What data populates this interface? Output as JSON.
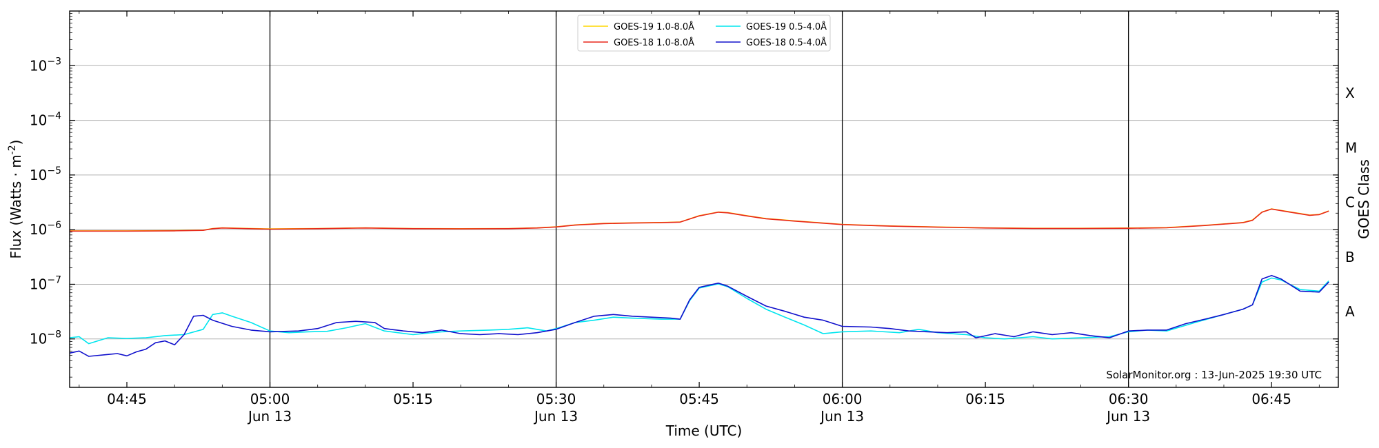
{
  "chart_data": {
    "type": "line",
    "title": "",
    "xlabel": "Time (UTC)",
    "ylabel": "Flux (Watts · m",
    "ylabel_sup": "-2",
    "ylabel_close": ")",
    "right_ylabel": "GOES Class",
    "x_range_utc": [
      "04:39",
      "06:52"
    ],
    "date": "2025-06-13",
    "ylim": [
      1.3e-09,
      0.01
    ],
    "yscale": "log",
    "grid": "horizontal",
    "legend_placement": "top-center",
    "x_ticks": [
      {
        "t": "04:45",
        "label": "04:45",
        "sub": ""
      },
      {
        "t": "05:00",
        "label": "05:00",
        "sub": "Jun 13",
        "vline": true
      },
      {
        "t": "05:15",
        "label": "05:15",
        "sub": ""
      },
      {
        "t": "05:30",
        "label": "05:30",
        "sub": "Jun 13",
        "vline": true
      },
      {
        "t": "05:45",
        "label": "05:45",
        "sub": ""
      },
      {
        "t": "06:00",
        "label": "06:00",
        "sub": "Jun 13",
        "vline": true
      },
      {
        "t": "06:15",
        "label": "06:15",
        "sub": ""
      },
      {
        "t": "06:30",
        "label": "06:30",
        "sub": "Jun 13",
        "vline": true
      },
      {
        "t": "06:45",
        "label": "06:45",
        "sub": ""
      }
    ],
    "y_ticks": [
      {
        "v": 1e-08,
        "base": "10",
        "exp": "−8"
      },
      {
        "v": 1e-07,
        "base": "10",
        "exp": "−7"
      },
      {
        "v": 1e-06,
        "base": "10",
        "exp": "−6"
      },
      {
        "v": 1e-05,
        "base": "10",
        "exp": "−5"
      },
      {
        "v": 0.0001,
        "base": "10",
        "exp": "−4"
      },
      {
        "v": 0.001,
        "base": "10",
        "exp": "−3"
      }
    ],
    "classes": [
      {
        "label": "A",
        "v": 3.16e-08
      },
      {
        "label": "B",
        "v": 3.16e-07
      },
      {
        "label": "C",
        "v": 3.16e-06
      },
      {
        "label": "M",
        "v": 3.16e-05
      },
      {
        "label": "X",
        "v": 0.000316
      }
    ],
    "series": [
      {
        "name": "GOES-19 1.0-8.0Å",
        "color": "#ffd700",
        "points": [
          [
            "04:39",
            9.5e-07
          ],
          [
            "04:45",
            9.5e-07
          ],
          [
            "04:50",
            9.6e-07
          ],
          [
            "04:53",
            9.8e-07
          ],
          [
            "04:54",
            1.05e-06
          ],
          [
            "04:55",
            1.08e-06
          ],
          [
            "04:57",
            1.06e-06
          ],
          [
            "05:00",
            1.03e-06
          ],
          [
            "05:05",
            1.05e-06
          ],
          [
            "05:10",
            1.08e-06
          ],
          [
            "05:15",
            1.05e-06
          ],
          [
            "05:20",
            1.04e-06
          ],
          [
            "05:25",
            1.05e-06
          ],
          [
            "05:28",
            1.08e-06
          ],
          [
            "05:30",
            1.13e-06
          ],
          [
            "05:32",
            1.22e-06
          ],
          [
            "05:35",
            1.3e-06
          ],
          [
            "05:38",
            1.33e-06
          ],
          [
            "05:41",
            1.35e-06
          ],
          [
            "05:43",
            1.38e-06
          ],
          [
            "05:45",
            1.8e-06
          ],
          [
            "05:47",
            2.1e-06
          ],
          [
            "05:48",
            2.05e-06
          ],
          [
            "05:50",
            1.8e-06
          ],
          [
            "05:52",
            1.6e-06
          ],
          [
            "05:55",
            1.45e-06
          ],
          [
            "06:00",
            1.25e-06
          ],
          [
            "06:05",
            1.17e-06
          ],
          [
            "06:10",
            1.12e-06
          ],
          [
            "06:15",
            1.08e-06
          ],
          [
            "06:20",
            1.06e-06
          ],
          [
            "06:25",
            1.06e-06
          ],
          [
            "06:30",
            1.07e-06
          ],
          [
            "06:34",
            1.09e-06
          ],
          [
            "06:38",
            1.2e-06
          ],
          [
            "06:42",
            1.35e-06
          ],
          [
            "06:43",
            1.5e-06
          ],
          [
            "06:44",
            2.1e-06
          ],
          [
            "06:45",
            2.4e-06
          ],
          [
            "06:47",
            2.1e-06
          ],
          [
            "06:49",
            1.85e-06
          ],
          [
            "06:50",
            1.9e-06
          ],
          [
            "06:51",
            2.2e-06
          ]
        ]
      },
      {
        "name": "GOES-18 1.0-8.0Å",
        "color": "#e8261a",
        "points": [
          [
            "04:39",
            9.4e-07
          ],
          [
            "04:45",
            9.4e-07
          ],
          [
            "04:50",
            9.5e-07
          ],
          [
            "04:53",
            9.7e-07
          ],
          [
            "04:54",
            1.04e-06
          ],
          [
            "04:55",
            1.07e-06
          ],
          [
            "04:57",
            1.05e-06
          ],
          [
            "05:00",
            1.02e-06
          ],
          [
            "05:05",
            1.04e-06
          ],
          [
            "05:10",
            1.07e-06
          ],
          [
            "05:15",
            1.04e-06
          ],
          [
            "05:20",
            1.03e-06
          ],
          [
            "05:25",
            1.04e-06
          ],
          [
            "05:28",
            1.07e-06
          ],
          [
            "05:30",
            1.12e-06
          ],
          [
            "05:32",
            1.21e-06
          ],
          [
            "05:35",
            1.29e-06
          ],
          [
            "05:38",
            1.32e-06
          ],
          [
            "05:41",
            1.34e-06
          ],
          [
            "05:43",
            1.37e-06
          ],
          [
            "05:45",
            1.78e-06
          ],
          [
            "05:47",
            2.08e-06
          ],
          [
            "05:48",
            2.03e-06
          ],
          [
            "05:50",
            1.78e-06
          ],
          [
            "05:52",
            1.58e-06
          ],
          [
            "05:55",
            1.43e-06
          ],
          [
            "06:00",
            1.24e-06
          ],
          [
            "06:05",
            1.16e-06
          ],
          [
            "06:10",
            1.11e-06
          ],
          [
            "06:15",
            1.07e-06
          ],
          [
            "06:20",
            1.05e-06
          ],
          [
            "06:25",
            1.05e-06
          ],
          [
            "06:30",
            1.06e-06
          ],
          [
            "06:34",
            1.08e-06
          ],
          [
            "06:38",
            1.19e-06
          ],
          [
            "06:42",
            1.34e-06
          ],
          [
            "06:43",
            1.48e-06
          ],
          [
            "06:44",
            2.08e-06
          ],
          [
            "06:45",
            2.38e-06
          ],
          [
            "06:47",
            2.08e-06
          ],
          [
            "06:49",
            1.83e-06
          ],
          [
            "06:50",
            1.88e-06
          ],
          [
            "06:51",
            2.18e-06
          ]
        ]
      },
      {
        "name": "GOES-19 0.5-4.0Å",
        "color": "#00e5ee",
        "points": [
          [
            "04:39",
            1.05e-08
          ],
          [
            "04:40",
            1.1e-08
          ],
          [
            "04:41",
            8.2e-09
          ],
          [
            "04:43",
            1.05e-08
          ],
          [
            "04:45",
            1.02e-08
          ],
          [
            "04:47",
            1.05e-08
          ],
          [
            "04:49",
            1.15e-08
          ],
          [
            "04:51",
            1.2e-08
          ],
          [
            "04:53",
            1.5e-08
          ],
          [
            "04:54",
            2.8e-08
          ],
          [
            "04:55",
            3e-08
          ],
          [
            "04:56",
            2.6e-08
          ],
          [
            "04:58",
            2e-08
          ],
          [
            "05:00",
            1.4e-08
          ],
          [
            "05:02",
            1.3e-08
          ],
          [
            "05:04",
            1.35e-08
          ],
          [
            "05:06",
            1.38e-08
          ],
          [
            "05:08",
            1.6e-08
          ],
          [
            "05:10",
            1.9e-08
          ],
          [
            "05:12",
            1.4e-08
          ],
          [
            "05:15",
            1.2e-08
          ],
          [
            "05:18",
            1.35e-08
          ],
          [
            "05:20",
            1.4e-08
          ],
          [
            "05:23",
            1.45e-08
          ],
          [
            "05:25",
            1.5e-08
          ],
          [
            "05:27",
            1.6e-08
          ],
          [
            "05:29",
            1.4e-08
          ],
          [
            "05:30",
            1.55e-08
          ],
          [
            "05:32",
            2e-08
          ],
          [
            "05:34",
            2.2e-08
          ],
          [
            "05:36",
            2.5e-08
          ],
          [
            "05:38",
            2.4e-08
          ],
          [
            "05:41",
            2.3e-08
          ],
          [
            "05:43",
            2.3e-08
          ],
          [
            "05:44",
            5e-08
          ],
          [
            "05:45",
            8.5e-08
          ],
          [
            "05:47",
            1.02e-07
          ],
          [
            "05:48",
            9e-08
          ],
          [
            "05:50",
            5.5e-08
          ],
          [
            "05:52",
            3.5e-08
          ],
          [
            "05:54",
            2.5e-08
          ],
          [
            "05:56",
            1.8e-08
          ],
          [
            "05:58",
            1.25e-08
          ],
          [
            "06:00",
            1.35e-08
          ],
          [
            "06:03",
            1.4e-08
          ],
          [
            "06:06",
            1.3e-08
          ],
          [
            "06:08",
            1.5e-08
          ],
          [
            "06:10",
            1.3e-08
          ],
          [
            "06:13",
            1.2e-08
          ],
          [
            "06:15",
            1.05e-08
          ],
          [
            "06:17",
            1e-08
          ],
          [
            "06:20",
            1.1e-08
          ],
          [
            "06:22",
            1e-08
          ],
          [
            "06:25",
            1.05e-08
          ],
          [
            "06:28",
            1.1e-08
          ],
          [
            "06:30",
            1.35e-08
          ],
          [
            "06:32",
            1.45e-08
          ],
          [
            "06:34",
            1.4e-08
          ],
          [
            "06:37",
            2e-08
          ],
          [
            "06:40",
            2.8e-08
          ],
          [
            "06:42",
            3.5e-08
          ],
          [
            "06:43",
            4.2e-08
          ],
          [
            "06:44",
            1.1e-07
          ],
          [
            "06:45",
            1.3e-07
          ],
          [
            "06:46",
            1.2e-07
          ],
          [
            "06:48",
            8e-08
          ],
          [
            "06:50",
            7.5e-08
          ],
          [
            "06:51",
            1.15e-07
          ]
        ]
      },
      {
        "name": "GOES-18 0.5-4.0Å",
        "color": "#1010cc",
        "points": [
          [
            "04:39",
            5.5e-09
          ],
          [
            "04:40",
            6e-09
          ],
          [
            "04:41",
            4.8e-09
          ],
          [
            "04:43",
            5.2e-09
          ],
          [
            "04:44",
            5.4e-09
          ],
          [
            "04:45",
            4.9e-09
          ],
          [
            "04:46",
            5.8e-09
          ],
          [
            "04:47",
            6.5e-09
          ],
          [
            "04:48",
            8.5e-09
          ],
          [
            "04:49",
            9.2e-09
          ],
          [
            "04:50",
            7.8e-09
          ],
          [
            "04:51",
            1.2e-08
          ],
          [
            "04:52",
            2.6e-08
          ],
          [
            "04:53",
            2.7e-08
          ],
          [
            "04:54",
            2.2e-08
          ],
          [
            "04:56",
            1.7e-08
          ],
          [
            "04:58",
            1.45e-08
          ],
          [
            "05:00",
            1.35e-08
          ],
          [
            "05:03",
            1.4e-08
          ],
          [
            "05:05",
            1.55e-08
          ],
          [
            "05:07",
            2e-08
          ],
          [
            "05:09",
            2.1e-08
          ],
          [
            "05:11",
            2e-08
          ],
          [
            "05:12",
            1.55e-08
          ],
          [
            "05:14",
            1.4e-08
          ],
          [
            "05:16",
            1.3e-08
          ],
          [
            "05:18",
            1.45e-08
          ],
          [
            "05:20",
            1.25e-08
          ],
          [
            "05:22",
            1.2e-08
          ],
          [
            "05:24",
            1.25e-08
          ],
          [
            "05:26",
            1.2e-08
          ],
          [
            "05:28",
            1.3e-08
          ],
          [
            "05:30",
            1.5e-08
          ],
          [
            "05:32",
            2e-08
          ],
          [
            "05:34",
            2.6e-08
          ],
          [
            "05:36",
            2.8e-08
          ],
          [
            "05:38",
            2.6e-08
          ],
          [
            "05:40",
            2.5e-08
          ],
          [
            "05:42",
            2.4e-08
          ],
          [
            "05:43",
            2.3e-08
          ],
          [
            "05:44",
            5.2e-08
          ],
          [
            "05:45",
            8.8e-08
          ],
          [
            "05:47",
            1.05e-07
          ],
          [
            "05:48",
            9.2e-08
          ],
          [
            "05:50",
            6e-08
          ],
          [
            "05:52",
            4e-08
          ],
          [
            "05:54",
            3.2e-08
          ],
          [
            "05:56",
            2.5e-08
          ],
          [
            "05:58",
            2.2e-08
          ],
          [
            "06:00",
            1.7e-08
          ],
          [
            "06:03",
            1.65e-08
          ],
          [
            "06:05",
            1.55e-08
          ],
          [
            "06:07",
            1.4e-08
          ],
          [
            "06:09",
            1.35e-08
          ],
          [
            "06:11",
            1.3e-08
          ],
          [
            "06:13",
            1.35e-08
          ],
          [
            "06:14",
            1.05e-08
          ],
          [
            "06:16",
            1.25e-08
          ],
          [
            "06:18",
            1.1e-08
          ],
          [
            "06:20",
            1.35e-08
          ],
          [
            "06:22",
            1.2e-08
          ],
          [
            "06:24",
            1.3e-08
          ],
          [
            "06:26",
            1.15e-08
          ],
          [
            "06:28",
            1.05e-08
          ],
          [
            "06:30",
            1.4e-08
          ],
          [
            "06:32",
            1.45e-08
          ],
          [
            "06:34",
            1.45e-08
          ],
          [
            "06:36",
            1.9e-08
          ],
          [
            "06:38",
            2.3e-08
          ],
          [
            "06:40",
            2.8e-08
          ],
          [
            "06:42",
            3.5e-08
          ],
          [
            "06:43",
            4.2e-08
          ],
          [
            "06:44",
            1.25e-07
          ],
          [
            "06:45",
            1.45e-07
          ],
          [
            "06:46",
            1.25e-07
          ],
          [
            "06:48",
            7.5e-08
          ],
          [
            "06:50",
            7.2e-08
          ],
          [
            "06:51",
            1.1e-07
          ]
        ]
      }
    ],
    "credit": "SolarMonitor.org : 13-Jun-2025 19:30 UTC"
  }
}
